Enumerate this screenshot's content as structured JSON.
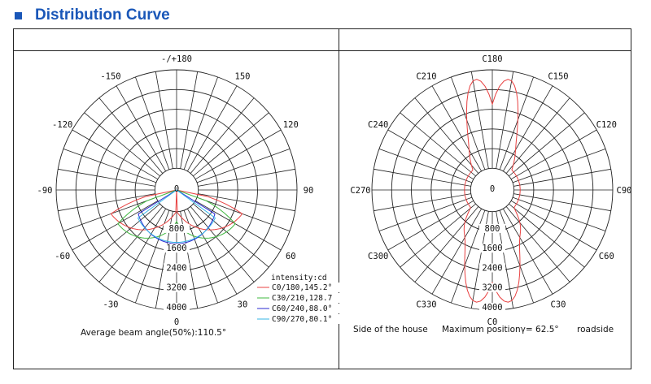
{
  "title": "Distribution Curve",
  "colors": {
    "accent": "#1a57b8",
    "c0": "#e84040",
    "c30": "#3fb83f",
    "c60": "#2a2ad0",
    "c90": "#36b6e6"
  },
  "left_diagram": {
    "angle_labels": [
      {
        "deg": 180,
        "text": "-/+180"
      },
      {
        "deg": 150,
        "text": "150"
      },
      {
        "deg": -150,
        "text": "-150"
      },
      {
        "deg": 120,
        "text": "120"
      },
      {
        "deg": -120,
        "text": "-120"
      },
      {
        "deg": 90,
        "text": "90"
      },
      {
        "deg": -90,
        "text": "-90"
      },
      {
        "deg": 60,
        "text": "60"
      },
      {
        "deg": -60,
        "text": "-60"
      },
      {
        "deg": 30,
        "text": "30"
      },
      {
        "deg": -30,
        "text": "-30"
      },
      {
        "deg": 0,
        "text": "0"
      }
    ],
    "radial_labels": [
      "0",
      "800",
      "1600",
      "2400",
      "3200",
      "4000"
    ],
    "legend_title": "intensity:cd",
    "legend": [
      {
        "text": "C0/180,145.2°",
        "color": "#e84040"
      },
      {
        "text": "C30/210,128.7",
        "color": "#3fb83f"
      },
      {
        "text": "C60/240,88.0°",
        "color": "#2a2ad0"
      },
      {
        "text": "C90/270,80.1°",
        "color": "#36b6e6"
      }
    ],
    "caption": "Average beam angle(50%):110.5°"
  },
  "right_diagram": {
    "angle_labels": [
      {
        "deg": 180,
        "text": "C180"
      },
      {
        "deg": 150,
        "text": "C150"
      },
      {
        "deg": -150,
        "text": "C210"
      },
      {
        "deg": 120,
        "text": "C120"
      },
      {
        "deg": -120,
        "text": "C240"
      },
      {
        "deg": 90,
        "text": "C90"
      },
      {
        "deg": -90,
        "text": "C270"
      },
      {
        "deg": 60,
        "text": "C60"
      },
      {
        "deg": -60,
        "text": "C300"
      },
      {
        "deg": 30,
        "text": "C30"
      },
      {
        "deg": -30,
        "text": "C330"
      },
      {
        "deg": 0,
        "text": "C0"
      }
    ],
    "radial_labels": [
      "0",
      "800",
      "1600",
      "2400",
      "3200",
      "4000"
    ],
    "caption_left": "Side of the house",
    "caption_mid": "Maximum positionγ= 62.5°",
    "caption_right": "roadside"
  }
}
